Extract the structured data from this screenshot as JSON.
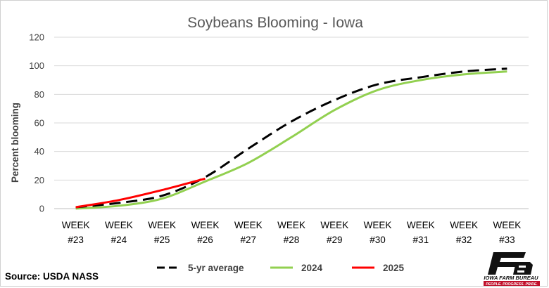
{
  "chart_data": {
    "type": "line",
    "title": "Soybeans Blooming - Iowa",
    "xlabel": "",
    "ylabel": "Percent blooming",
    "categories": [
      [
        "WEEK",
        "#23"
      ],
      [
        "WEEK",
        "#24"
      ],
      [
        "WEEK",
        "#25"
      ],
      [
        "WEEK",
        "#26"
      ],
      [
        "WEEK",
        "#27"
      ],
      [
        "WEEK",
        "#28"
      ],
      [
        "WEEK",
        "#29"
      ],
      [
        "WEEK",
        "#30"
      ],
      [
        "WEEK",
        "#31"
      ],
      [
        "WEEK",
        "#32"
      ],
      [
        "WEEK",
        "#33"
      ]
    ],
    "ylim": [
      0,
      120
    ],
    "yticks": [
      0,
      20,
      40,
      60,
      80,
      100,
      120
    ],
    "grid": "horizontal",
    "legend_position": "bottom",
    "series": [
      {
        "name": "5-yr average",
        "color": "#000000",
        "style": "dashed",
        "values": [
          1,
          4,
          9,
          22,
          42,
          61,
          76,
          87,
          92,
          96,
          98
        ]
      },
      {
        "name": "2024",
        "color": "#92D050",
        "style": "solid",
        "values": [
          0,
          2,
          7,
          19,
          32,
          50,
          69,
          83,
          90,
          94,
          96
        ]
      },
      {
        "name": "2025",
        "color": "#FF0000",
        "style": "solid",
        "values": [
          1,
          6,
          13,
          21,
          null,
          null,
          null,
          null,
          null,
          null,
          null
        ]
      }
    ]
  },
  "footer": {
    "source": "Source: USDA NASS"
  },
  "logo": {
    "name": "IOWA FARM BUREAU",
    "tagline": "PEOPLE. PROGRESS. PRIDE.",
    "icon": "farm-bureau-logo-icon"
  },
  "colors": {
    "title_text": "#595959",
    "axis_text": "#404040",
    "gridline": "#d9d9d9"
  }
}
